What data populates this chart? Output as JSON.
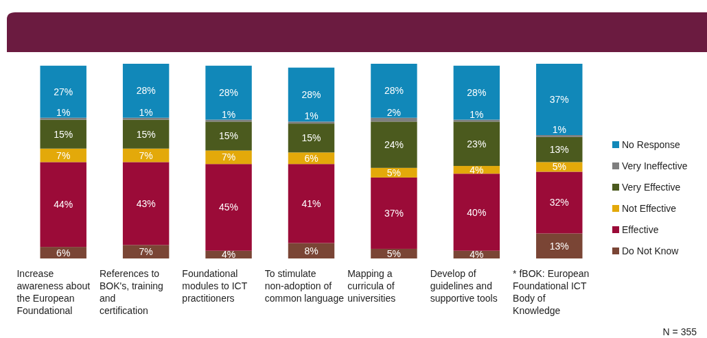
{
  "chart_data": {
    "type": "bar",
    "stacked": true,
    "legend": "right",
    "categories": [
      "Increase awareness about the European Foundational",
      "References to BOK's, training and certification",
      "Foundational modules to ICT practitioners",
      "To stimulate non-adoption of common language",
      "Mapping a curricula of universities",
      "Develop of guidelines and supportive tools",
      "* fBOK: European Foundational ICT Body of Knowledge"
    ],
    "series": [
      {
        "name": "Do Not Know",
        "color": "#7a4535",
        "values": [
          6,
          7,
          4,
          8,
          5,
          4,
          13
        ],
        "value_labels": [
          "6%",
          "7%",
          "4%",
          "8%",
          "5%",
          "4%",
          "13%"
        ]
      },
      {
        "name": "Effective",
        "color": "#9b0b38",
        "values": [
          44,
          43,
          45,
          41,
          37,
          40,
          32
        ],
        "value_labels": [
          "44%",
          "43%",
          "45%",
          "41%",
          "37%",
          "40%",
          "32%"
        ]
      },
      {
        "name": "Not Effective",
        "color": "#e3a90a",
        "values": [
          7,
          7,
          7,
          6,
          5,
          4,
          5
        ],
        "value_labels": [
          "7%",
          "7%",
          "7%",
          "6%",
          "5%",
          "4%",
          "5%"
        ]
      },
      {
        "name": "Very Effective",
        "color": "#4b5a1e",
        "values": [
          15,
          15,
          15,
          15,
          24,
          23,
          13
        ],
        "value_labels": [
          "15%",
          "15%",
          "15%",
          "15%",
          "24%",
          "23%",
          "13%"
        ]
      },
      {
        "name": "Very Ineffective",
        "color": "#7f7f7f",
        "values": [
          1,
          1,
          1,
          1,
          2,
          1,
          1
        ],
        "value_labels": [
          "1%",
          "1%",
          "1%",
          "1%",
          "2%",
          "1%",
          "1%"
        ]
      },
      {
        "name": "No Response",
        "color": "#1188b9",
        "values": [
          27,
          28,
          28,
          28,
          28,
          28,
          37
        ],
        "value_labels": [
          "27%",
          "28%",
          "28%",
          "28%",
          "28%",
          "28%",
          "37%"
        ]
      }
    ],
    "annotations": [
      "N = 355"
    ]
  }
}
